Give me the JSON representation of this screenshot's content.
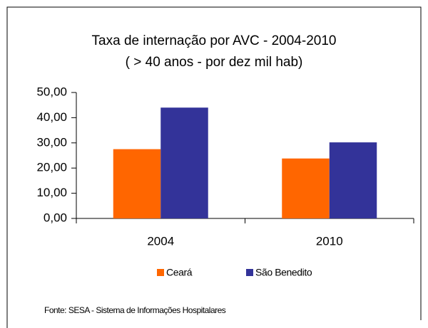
{
  "chart_data": {
    "type": "bar",
    "title": "Taxa de internação por AVC - 2004-2010",
    "subtitle": "( > 40 anos - por dez mil hab)",
    "categories": [
      "2004",
      "2010"
    ],
    "series": [
      {
        "name": "Ceará",
        "color": "#ff6600",
        "values": [
          27.5,
          23.8
        ]
      },
      {
        "name": "São Benedito",
        "color": "#333399",
        "values": [
          44.0,
          30.2
        ]
      }
    ],
    "ylim": [
      0,
      50
    ],
    "yticks": [
      {
        "value": 0,
        "label": "0,00"
      },
      {
        "value": 10,
        "label": "10,00"
      },
      {
        "value": 20,
        "label": "20,00"
      },
      {
        "value": 30,
        "label": "30,00"
      },
      {
        "value": 40,
        "label": "40,00"
      },
      {
        "value": 50,
        "label": "50,00"
      }
    ],
    "legend": "bottom",
    "source": "Fonte: SESA - Sistema de Informações Hospitalares"
  }
}
